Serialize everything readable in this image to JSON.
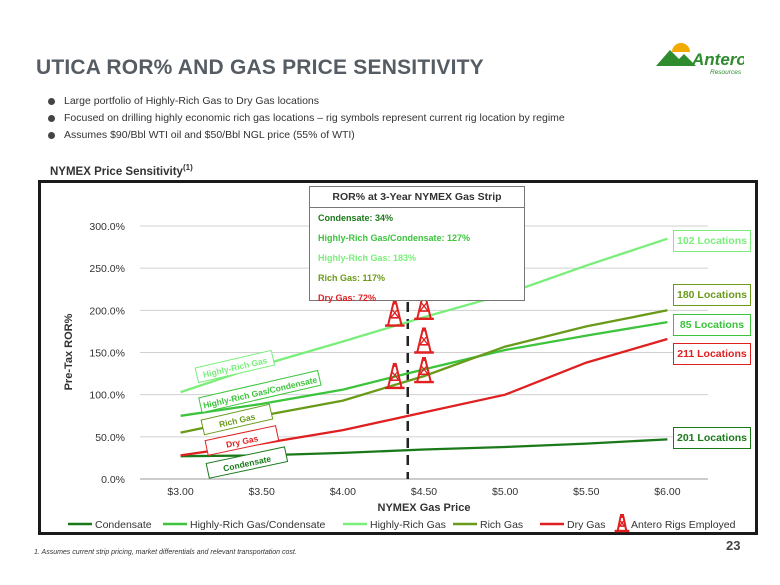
{
  "slide": {
    "title": "UTICA ROR% AND GAS PRICE SENSITIVITY",
    "logo_text": "Antero",
    "logo_subtext": "Resources",
    "bullets": [
      "Large portfolio of Highly-Rich Gas to Dry Gas locations",
      "Focused on drilling highly economic rich gas locations – rig symbols represent current rig location by regime",
      "Assumes $90/Bbl WTI oil and $50/Bbl NGL price (55% of WTI)"
    ],
    "section_title": "NYMEX Price Sensitivity",
    "section_title_sup": "(1)",
    "footnote": "1.  Assumes current strip pricing, market differentials and relevant transportation cost.",
    "page_number": "23"
  },
  "ror_box": {
    "title": "ROR% at 3-Year NYMEX Gas Strip",
    "lines": [
      {
        "text": "Condensate: 34%",
        "color": "#1a7a1a"
      },
      {
        "text": "Highly-Rich Gas/Condensate: 127%",
        "color": "#3cc43c"
      },
      {
        "text": "Highly-Rich Gas: 183%",
        "color": "#7aee7a"
      },
      {
        "text": "Rich Gas: 117%",
        "color": "#6a9a1a"
      },
      {
        "text": "Dry Gas: 72%",
        "color": "#e02020"
      }
    ]
  },
  "location_boxes": [
    {
      "text": "102 Locations",
      "color": "#7aee7a"
    },
    {
      "text": "180 Locations",
      "color": "#6a9a1a"
    },
    {
      "text": "85 Locations",
      "color": "#3cc43c"
    },
    {
      "text": "211 Locations",
      "color": "#e02020"
    },
    {
      "text": "201 Locations",
      "color": "#1a7a1a"
    }
  ],
  "chart_data": {
    "type": "line",
    "xlabel": "NYMEX Gas Price",
    "ylabel": "Pre-Tax ROR%",
    "x": [
      3.0,
      3.5,
      4.0,
      4.5,
      5.0,
      5.5,
      6.0
    ],
    "x_tick_labels": [
      "$3.00",
      "$3.50",
      "$4.00",
      "$4.50",
      "$5.00",
      "$5.50",
      "$6.00"
    ],
    "xlim": [
      2.75,
      6.25
    ],
    "ylim": [
      0,
      300
    ],
    "y_ticks": [
      0,
      50,
      100,
      150,
      200,
      250,
      300
    ],
    "y_tick_labels": [
      "0.0%",
      "50.0%",
      "100.0%",
      "150.0%",
      "200.0%",
      "250.0%",
      "300.0%"
    ],
    "grid": "horizontal",
    "legend_position": "bottom",
    "strip_price_marker": 4.4,
    "series": [
      {
        "name": "Condensate",
        "color": "#1a7a1a",
        "values": [
          27,
          28,
          31,
          35,
          38,
          42,
          47
        ]
      },
      {
        "name": "Highly-Rich Gas/Condensate",
        "color": "#3cc43c",
        "values": [
          75,
          89,
          106,
          130,
          153,
          170,
          186
        ]
      },
      {
        "name": "Highly-Rich Gas",
        "color": "#7aee7a",
        "values": [
          103,
          135,
          163,
          192,
          219,
          253,
          285
        ]
      },
      {
        "name": "Rich Gas",
        "color": "#6a9a1a",
        "values": [
          55,
          75,
          93,
          122,
          157,
          181,
          200
        ]
      },
      {
        "name": "Dry Gas",
        "color": "#e02020",
        "values": [
          28,
          42,
          58,
          79,
          100,
          138,
          166
        ]
      }
    ],
    "curve_labels": [
      {
        "text": "Highly-Rich Gas",
        "series": "Highly-Rich Gas"
      },
      {
        "text": "Highly-Rich Gas/Condensate",
        "series": "Highly-Rich Gas/Condensate"
      },
      {
        "text": "Rich Gas",
        "series": "Rich Gas"
      },
      {
        "text": "Dry Gas",
        "series": "Dry Gas"
      },
      {
        "text": "Condensate",
        "series": "Condensate"
      }
    ],
    "rigs": {
      "legend_label": "Antero Rigs Employed",
      "color": "#e02020",
      "positions": [
        {
          "x": 4.32,
          "y": 182
        },
        {
          "x": 4.5,
          "y": 190
        },
        {
          "x": 4.5,
          "y": 150
        },
        {
          "x": 4.32,
          "y": 108
        },
        {
          "x": 4.5,
          "y": 115
        }
      ]
    }
  }
}
